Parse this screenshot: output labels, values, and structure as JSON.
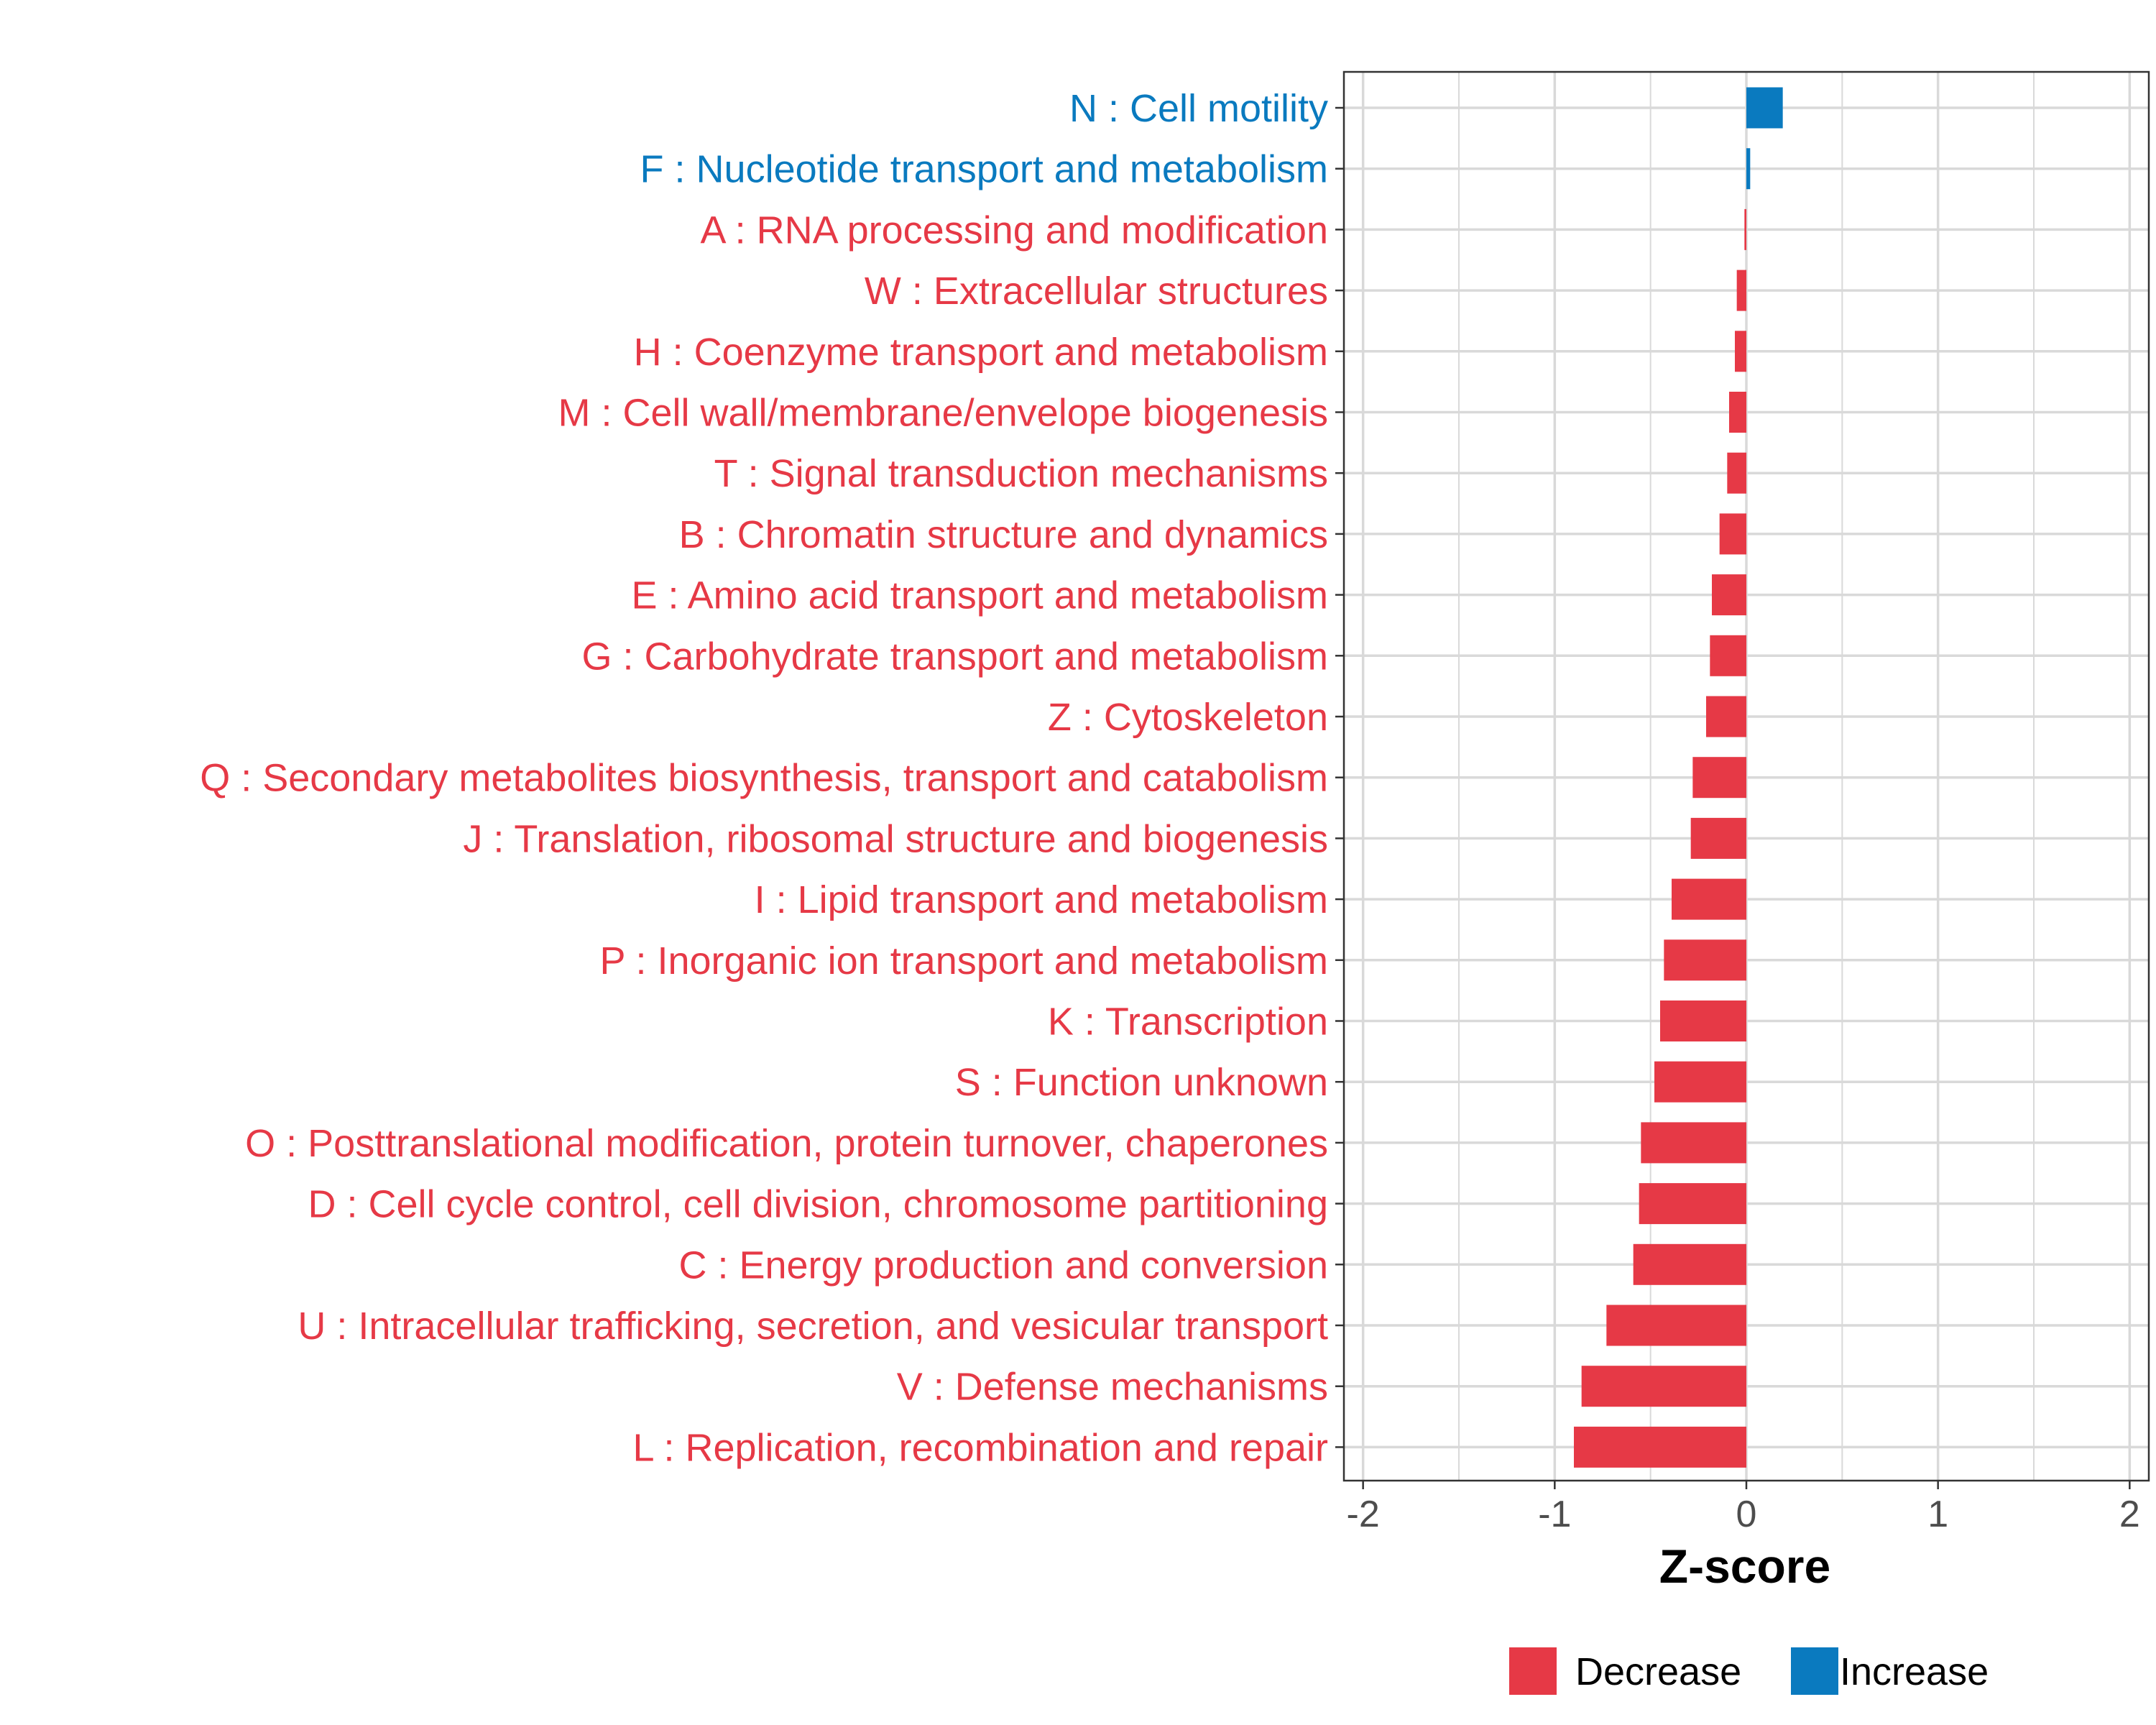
{
  "chart_data": {
    "type": "bar",
    "orientation": "horizontal",
    "title": "",
    "xlabel": "Z-score",
    "ylabel": "",
    "xlim": [
      -2.1,
      2.1
    ],
    "xticks": [
      -2,
      -1,
      0,
      1,
      2
    ],
    "xtick_labels": [
      "-2",
      "-1",
      "0",
      "1",
      "2"
    ],
    "grid": true,
    "categories": [
      "N : Cell motility",
      "F : Nucleotide transport and metabolism",
      "A : RNA processing and modification",
      "W : Extracellular structures",
      "H : Coenzyme transport and metabolism",
      "M : Cell wall/membrane/envelope biogenesis",
      "T : Signal transduction mechanisms",
      "B : Chromatin structure and dynamics",
      "E : Amino acid transport and metabolism",
      "G : Carbohydrate transport and metabolism",
      "Z : Cytoskeleton",
      "Q : Secondary metabolites biosynthesis, transport and catabolism",
      "J : Translation, ribosomal structure and biogenesis",
      "I : Lipid transport and metabolism",
      "P : Inorganic ion transport and metabolism",
      "K : Transcription",
      "S : Function unknown",
      "O : Posttranslational modification, protein turnover, chaperones",
      "D : Cell cycle control, cell division, chromosome partitioning",
      "C : Energy production and conversion",
      "U : Intracellular trafficking, secretion, and vesicular transport",
      "V : Defense mechanisms",
      "L : Replication, recombination and repair"
    ],
    "values": [
      0.19,
      0.02,
      -0.01,
      -0.05,
      -0.06,
      -0.09,
      -0.1,
      -0.14,
      -0.18,
      -0.19,
      -0.21,
      -0.28,
      -0.29,
      -0.39,
      -0.43,
      -0.45,
      -0.48,
      -0.55,
      -0.56,
      -0.59,
      -0.73,
      -0.86,
      -0.9
    ],
    "groups": [
      "Increase",
      "Increase",
      "Decrease",
      "Decrease",
      "Decrease",
      "Decrease",
      "Decrease",
      "Decrease",
      "Decrease",
      "Decrease",
      "Decrease",
      "Decrease",
      "Decrease",
      "Decrease",
      "Decrease",
      "Decrease",
      "Decrease",
      "Decrease",
      "Decrease",
      "Decrease",
      "Decrease",
      "Decrease",
      "Decrease"
    ],
    "legend": {
      "position": "bottom",
      "entries": [
        {
          "label": "Decrease",
          "color": "#E63946"
        },
        {
          "label": "Increase",
          "color": "#0A7ABF"
        }
      ]
    },
    "colors": {
      "Decrease": "#E63946",
      "Increase": "#0A7ABF"
    }
  }
}
